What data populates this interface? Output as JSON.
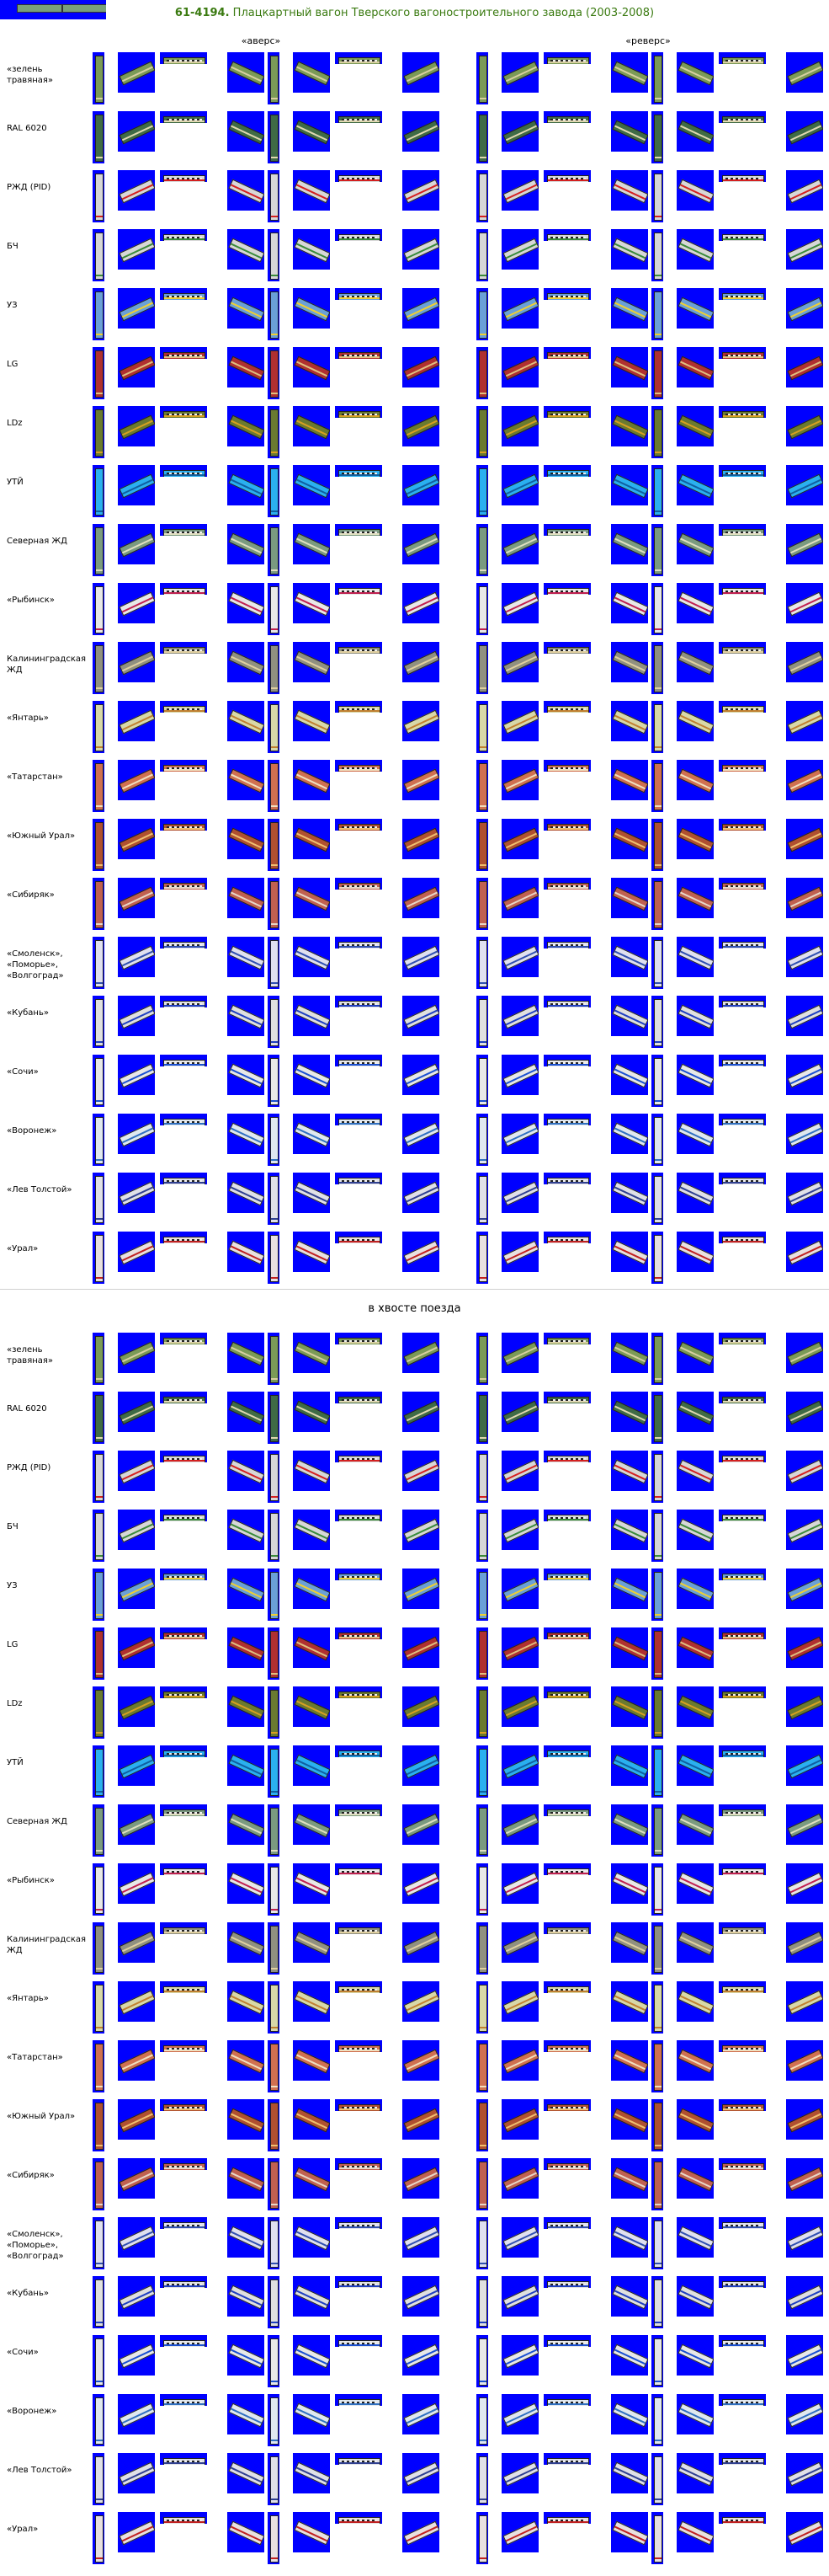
{
  "header": {
    "code": "61-4194.",
    "title": " Плацкартный вагон Тверского вагоностроительного завода (2003-2008)"
  },
  "columns": {
    "avers": "«аверс»",
    "revers": "«реверс»"
  },
  "second_section": {
    "title": "в хвосте поезда"
  },
  "liveries": [
    {
      "label": "«зелень травяная»",
      "color": "#7b9a57",
      "stripe": "#d8d0a0"
    },
    {
      "label": "RAL 6020",
      "color": "#3f6b46",
      "stripe": "#e0d8b0"
    },
    {
      "label": "РЖД (PID)",
      "color": "#d7d7d7",
      "stripe": "#d42020"
    },
    {
      "label": "БЧ",
      "color": "#d7d7d7",
      "stripe": "#3a8a3a"
    },
    {
      "label": "УЗ",
      "color": "#6aa0d8",
      "stripe": "#f0d030"
    },
    {
      "label": "LG",
      "color": "#b03030",
      "stripe": "#e0c080"
    },
    {
      "label": "LDz",
      "color": "#6a7a30",
      "stripe": "#d8a020"
    },
    {
      "label": "УТЙ",
      "color": "#2ab0f0",
      "stripe": "#1060a0"
    },
    {
      "label": "Северная ЖД",
      "color": "#7a9a80",
      "stripe": "#e0e0c0"
    },
    {
      "label": "«Рыбинск»",
      "color": "#e8e8e8",
      "stripe": "#c02050"
    },
    {
      "label": "Калининградская ЖД",
      "color": "#909080",
      "stripe": "#e0d0a0"
    },
    {
      "label": "«Янтарь»",
      "color": "#d8d8a8",
      "stripe": "#c08030"
    },
    {
      "label": "«Татарстан»",
      "color": "#d07050",
      "stripe": "#f0e0c0"
    },
    {
      "label": "«Южный Урал»",
      "color": "#b05030",
      "stripe": "#f0c070"
    },
    {
      "label": "«Сибиряк»",
      "color": "#c06050",
      "stripe": "#e8d8c8"
    },
    {
      "label": "«Смоленск», «Поморье», «Волгоград»",
      "color": "#e0e0f0",
      "stripe": "#3050b0"
    },
    {
      "label": "«Кубань»",
      "color": "#e0e0e0",
      "stripe": "#2040c0"
    },
    {
      "label": "«Сочи»",
      "color": "#e8e8e8",
      "stripe": "#1a50d0"
    },
    {
      "label": "«Воронеж»",
      "color": "#e0e8f0",
      "stripe": "#3070c0"
    },
    {
      "label": "«Лев Толстой»",
      "color": "#e0e0e8",
      "stripe": "#304090"
    },
    {
      "label": "«Урал»",
      "color": "#e8e0e0",
      "stripe": "#c02020"
    }
  ]
}
